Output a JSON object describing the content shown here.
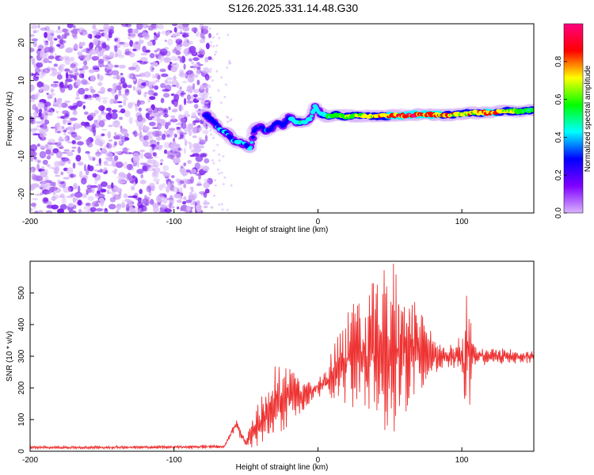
{
  "title": "S126.2025.331.14.48.G30",
  "chart_data": [
    {
      "type": "heatmap",
      "name": "spectrogram",
      "xlabel": "Height of straight line (km)",
      "ylabel": "Frequency (Hz)",
      "xlim": [
        -200,
        150
      ],
      "ylim": [
        -25,
        25
      ],
      "xticks": [
        -200,
        -100,
        0,
        100
      ],
      "xtick_labels": [
        "-200",
        "-100",
        "0",
        "100"
      ],
      "yticks": [
        -20,
        -10,
        0,
        10,
        20
      ],
      "ytick_labels": [
        "-20",
        "-10",
        "0",
        "10",
        "20"
      ],
      "colorbar": {
        "label": "Normalized spectral amplitude",
        "range": [
          0,
          1
        ],
        "ticks": [
          0.0,
          0.2,
          0.4,
          0.6,
          0.8
        ],
        "tick_labels": [
          "0.0",
          "0.2",
          "0.4",
          "0.6",
          "0.8"
        ],
        "colors": [
          "#d9b3ff",
          "#8000ff",
          "#0000ff",
          "#00ffff",
          "#00ff00",
          "#ffff00",
          "#ff0000",
          "#ff0080"
        ]
      },
      "noise_region_x": [
        -200,
        -75
      ],
      "ridge": {
        "x": [
          -78,
          -72,
          -68,
          -63,
          -58,
          -54,
          -50,
          -47,
          -44,
          -40,
          -36,
          -32,
          -28,
          -24,
          -20,
          -16,
          -12,
          -8,
          -5,
          -2,
          0,
          3,
          7,
          12,
          20,
          30,
          40,
          50,
          60,
          70,
          80,
          90,
          100,
          110,
          120,
          130,
          140,
          150
        ],
        "y": [
          1,
          -1,
          -3,
          -4,
          -6,
          -6.5,
          -7,
          -8,
          -3,
          -2,
          -3.5,
          -2.5,
          -1,
          -2,
          0.5,
          -1,
          -1,
          -1,
          0,
          3,
          2,
          1,
          0.5,
          1,
          0.5,
          0.8,
          0.5,
          0.7,
          0.8,
          1,
          1,
          0.8,
          1.2,
          1.5,
          1.5,
          2,
          1.8,
          2.2
        ],
        "amp": [
          0.3,
          0.35,
          0.4,
          0.35,
          0.35,
          0.4,
          0.35,
          0.4,
          0.25,
          0.25,
          0.35,
          0.3,
          0.3,
          0.3,
          0.4,
          0.45,
          0.5,
          0.45,
          0.4,
          0.45,
          0.4,
          0.5,
          0.55,
          0.6,
          0.65,
          0.7,
          0.75,
          0.8,
          0.9,
          0.9,
          0.85,
          0.75,
          0.7,
          0.75,
          0.85,
          0.7,
          0.6,
          0.55
        ]
      }
    },
    {
      "type": "line",
      "name": "snr",
      "xlabel": "Height of straight line (km)",
      "ylabel": "SNR (10 * v/v)",
      "xlim": [
        -200,
        150
      ],
      "ylim": [
        0,
        600
      ],
      "xticks": [
        -200,
        -100,
        0,
        100
      ],
      "xtick_labels": [
        "-200",
        "-100",
        "0",
        "100"
      ],
      "yticks": [
        0,
        100,
        200,
        300,
        400,
        500
      ],
      "ytick_labels": [
        "0",
        "100",
        "200",
        "300",
        "400",
        "500"
      ],
      "color": "#ee3333",
      "envelope": {
        "x": [
          -200,
          -150,
          -100,
          -65,
          -60,
          -57,
          -53,
          -50,
          -45,
          -40,
          -35,
          -30,
          -25,
          -20,
          -15,
          -10,
          -5,
          0,
          5,
          10,
          15,
          20,
          25,
          30,
          35,
          40,
          45,
          50,
          55,
          60,
          65,
          70,
          75,
          80,
          85,
          90,
          95,
          100,
          103,
          105,
          107,
          110,
          120,
          130,
          140,
          150
        ],
        "base": [
          12,
          12,
          13,
          15,
          60,
          85,
          50,
          30,
          60,
          95,
          130,
          155,
          165,
          175,
          180,
          175,
          185,
          205,
          220,
          245,
          270,
          300,
          310,
          310,
          320,
          330,
          325,
          330,
          320,
          310,
          320,
          320,
          315,
          300,
          300,
          300,
          300,
          300,
          280,
          320,
          300,
          300,
          300,
          300,
          300,
          300
        ],
        "amp": [
          4,
          4,
          4,
          5,
          10,
          15,
          15,
          15,
          40,
          60,
          80,
          90,
          90,
          80,
          60,
          40,
          30,
          25,
          40,
          70,
          90,
          120,
          140,
          150,
          180,
          200,
          210,
          220,
          200,
          160,
          140,
          120,
          90,
          60,
          40,
          30,
          30,
          60,
          200,
          260,
          40,
          25,
          20,
          20,
          20,
          20
        ]
      }
    }
  ]
}
